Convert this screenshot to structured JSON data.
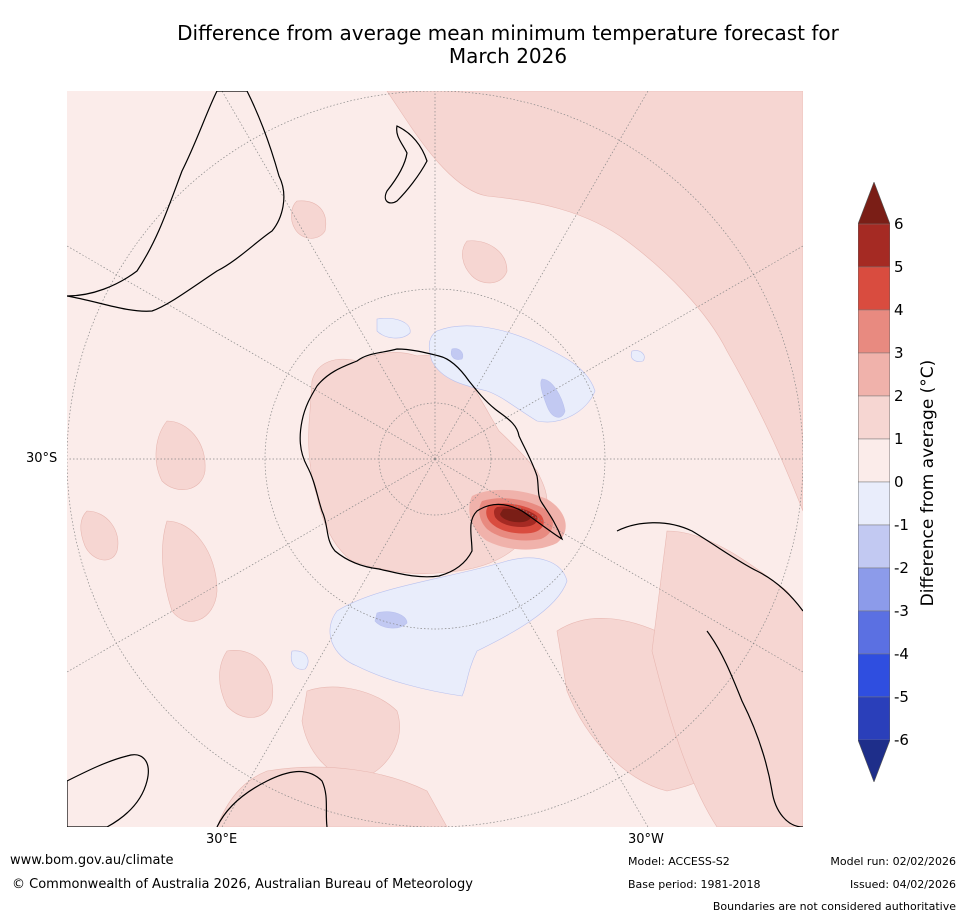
{
  "title_line1": "Difference from average mean minimum temperature forecast for",
  "title_line2": "March 2026",
  "axis_labels": {
    "lat": "30°S",
    "lon_east": "30°E",
    "lon_west": "30°W"
  },
  "colorbar": {
    "label": "Difference from average (°C)",
    "ticks": [
      "6",
      "5",
      "4",
      "3",
      "2",
      "1",
      "0",
      "-1",
      "-2",
      "-3",
      "-4",
      "-5",
      "-6"
    ],
    "colors": [
      "#7a1e16",
      "#a52a23",
      "#d94c3f",
      "#e88a80",
      "#f0b2ab",
      "#f6d6d2",
      "#fbecea",
      "#e9edfb",
      "#c2c9f2",
      "#8c9bea",
      "#5b70e2",
      "#2f4ee0",
      "#2a3fba",
      "#1e2e8a"
    ]
  },
  "footer": {
    "website": "www.bom.gov.au/climate",
    "copyright": "© Commonwealth of Australia 2026, Australian Bureau of Meteorology",
    "model": "Model: ACCESS-S2",
    "base_period": "Base period: 1981-2018",
    "model_run": "Model run: 02/02/2026",
    "issued": "Issued: 04/02/2026",
    "disclaimer": "Boundaries are not considered authoritative"
  }
}
